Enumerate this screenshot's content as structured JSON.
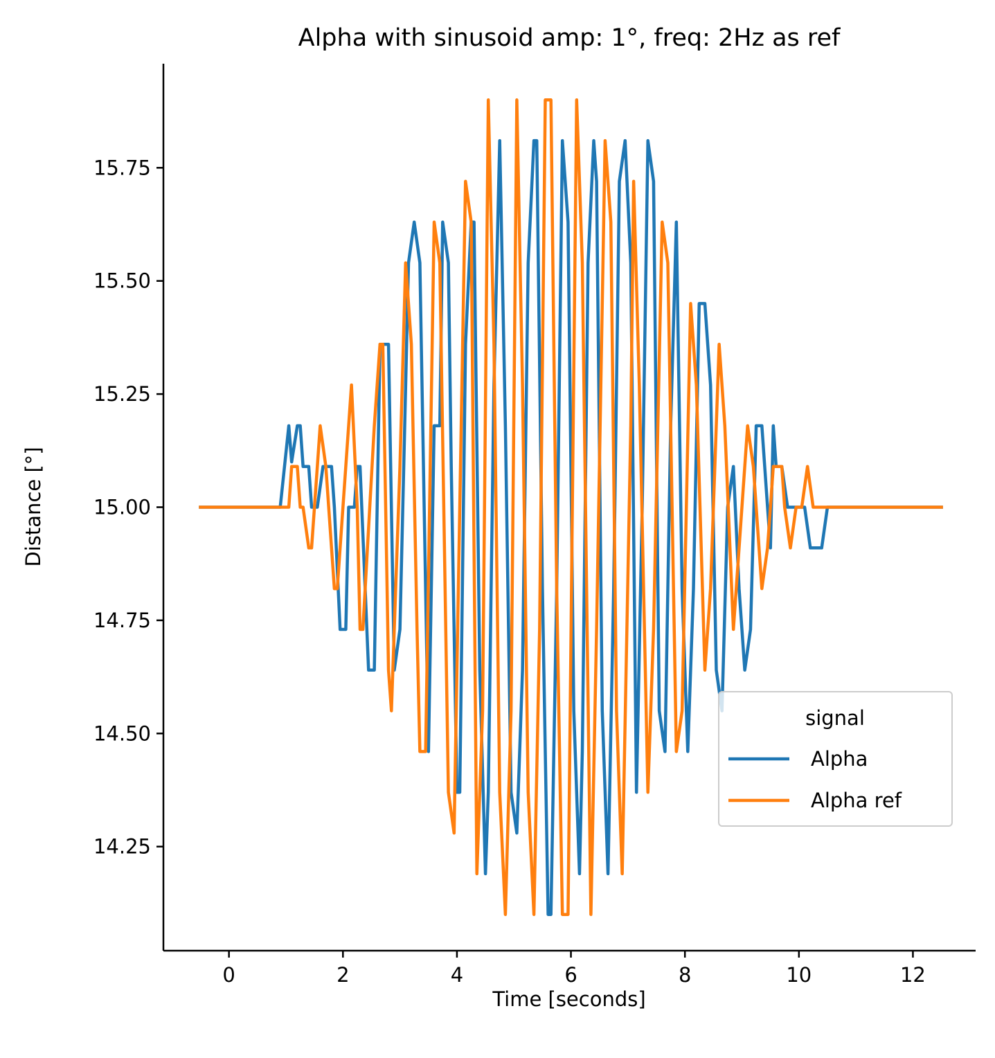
{
  "chart_data": {
    "type": "line",
    "title": "Alpha with sinusoid amp: 1°, freq: 2Hz as ref",
    "xlabel": "Time [seconds]",
    "ylabel": "Distance [°]",
    "xlim": [
      -1.15,
      13.1
    ],
    "ylim": [
      14.02,
      15.98
    ],
    "xticks": [
      0,
      2,
      4,
      6,
      8,
      10,
      12
    ],
    "xtick_labels": [
      "0",
      "2",
      "4",
      "6",
      "8",
      "10",
      "12"
    ],
    "yticks": [
      14.25,
      14.5,
      14.75,
      15.0,
      15.25,
      15.5,
      15.75
    ],
    "ytick_labels": [
      "14.25",
      "14.50",
      "14.75",
      "15.00",
      "15.25",
      "15.50",
      "15.75"
    ],
    "grid": false,
    "legend": {
      "title": "signal",
      "position": "center-right"
    },
    "series": [
      {
        "name": "Alpha",
        "color": "#1f77b4",
        "points": [
          [
            -0.5,
            15.0
          ],
          [
            0.9,
            15.0
          ],
          [
            1.05,
            15.18
          ],
          [
            1.1,
            15.1
          ],
          [
            1.2,
            15.18
          ],
          [
            1.25,
            15.18
          ],
          [
            1.3,
            15.09
          ],
          [
            1.4,
            15.09
          ],
          [
            1.45,
            15.0
          ],
          [
            1.55,
            15.0
          ],
          [
            1.65,
            15.09
          ],
          [
            1.8,
            15.09
          ],
          [
            1.85,
            15.0
          ],
          [
            1.95,
            14.73
          ],
          [
            2.05,
            14.73
          ],
          [
            2.1,
            15.0
          ],
          [
            2.2,
            15.0
          ],
          [
            2.25,
            15.09
          ],
          [
            2.3,
            15.09
          ],
          [
            2.45,
            14.64
          ],
          [
            2.55,
            14.64
          ],
          [
            2.65,
            15.36
          ],
          [
            2.8,
            15.36
          ],
          [
            2.9,
            14.64
          ],
          [
            3.0,
            14.73
          ],
          [
            3.15,
            15.54
          ],
          [
            3.25,
            15.63
          ],
          [
            3.35,
            15.54
          ],
          [
            3.5,
            14.46
          ],
          [
            3.6,
            15.18
          ],
          [
            3.7,
            15.18
          ],
          [
            3.75,
            15.63
          ],
          [
            3.85,
            15.54
          ],
          [
            3.9,
            15.09
          ],
          [
            4.0,
            14.37
          ],
          [
            4.05,
            14.37
          ],
          [
            4.15,
            15.36
          ],
          [
            4.25,
            15.63
          ],
          [
            4.3,
            15.63
          ],
          [
            4.4,
            14.64
          ],
          [
            4.5,
            14.19
          ],
          [
            4.55,
            14.37
          ],
          [
            4.65,
            15.27
          ],
          [
            4.75,
            15.81
          ],
          [
            4.85,
            15.18
          ],
          [
            4.95,
            14.37
          ],
          [
            5.05,
            14.28
          ],
          [
            5.15,
            14.64
          ],
          [
            5.25,
            15.54
          ],
          [
            5.35,
            15.81
          ],
          [
            5.4,
            15.81
          ],
          [
            5.5,
            14.82
          ],
          [
            5.6,
            14.1
          ],
          [
            5.65,
            14.1
          ],
          [
            5.75,
            14.82
          ],
          [
            5.85,
            15.81
          ],
          [
            5.95,
            15.63
          ],
          [
            6.05,
            14.55
          ],
          [
            6.15,
            14.19
          ],
          [
            6.2,
            14.46
          ],
          [
            6.3,
            15.54
          ],
          [
            6.4,
            15.81
          ],
          [
            6.45,
            15.72
          ],
          [
            6.55,
            14.55
          ],
          [
            6.65,
            14.19
          ],
          [
            6.75,
            14.82
          ],
          [
            6.85,
            15.72
          ],
          [
            6.95,
            15.81
          ],
          [
            7.05,
            15.54
          ],
          [
            7.15,
            14.37
          ],
          [
            7.25,
            15.0
          ],
          [
            7.35,
            15.81
          ],
          [
            7.45,
            15.72
          ],
          [
            7.55,
            14.55
          ],
          [
            7.65,
            14.46
          ],
          [
            7.75,
            15.18
          ],
          [
            7.85,
            15.63
          ],
          [
            7.95,
            14.82
          ],
          [
            8.05,
            14.46
          ],
          [
            8.15,
            14.82
          ],
          [
            8.25,
            15.45
          ],
          [
            8.35,
            15.45
          ],
          [
            8.45,
            15.27
          ],
          [
            8.55,
            14.64
          ],
          [
            8.65,
            14.55
          ],
          [
            8.75,
            15.0
          ],
          [
            8.85,
            15.09
          ],
          [
            8.95,
            14.82
          ],
          [
            9.05,
            14.64
          ],
          [
            9.15,
            14.73
          ],
          [
            9.25,
            15.18
          ],
          [
            9.35,
            15.18
          ],
          [
            9.45,
            15.0
          ],
          [
            9.5,
            14.91
          ],
          [
            9.55,
            15.18
          ],
          [
            9.6,
            15.09
          ],
          [
            9.7,
            15.09
          ],
          [
            9.8,
            15.0
          ],
          [
            10.1,
            15.0
          ],
          [
            10.2,
            14.91
          ],
          [
            10.4,
            14.91
          ],
          [
            10.5,
            15.0
          ],
          [
            12.5,
            15.0
          ]
        ]
      },
      {
        "name": "Alpha ref",
        "color": "#ff7f0e",
        "points": [
          [
            -0.5,
            15.0
          ],
          [
            1.05,
            15.0
          ],
          [
            1.1,
            15.09
          ],
          [
            1.2,
            15.09
          ],
          [
            1.25,
            15.0
          ],
          [
            1.3,
            15.0
          ],
          [
            1.4,
            14.91
          ],
          [
            1.45,
            14.91
          ],
          [
            1.55,
            15.09
          ],
          [
            1.6,
            15.18
          ],
          [
            1.7,
            15.09
          ],
          [
            1.85,
            14.82
          ],
          [
            1.9,
            14.82
          ],
          [
            2.05,
            15.09
          ],
          [
            2.15,
            15.27
          ],
          [
            2.25,
            15.0
          ],
          [
            2.3,
            14.73
          ],
          [
            2.35,
            14.73
          ],
          [
            2.55,
            15.18
          ],
          [
            2.65,
            15.36
          ],
          [
            2.7,
            15.36
          ],
          [
            2.8,
            14.64
          ],
          [
            2.85,
            14.55
          ],
          [
            3.0,
            15.09
          ],
          [
            3.1,
            15.54
          ],
          [
            3.2,
            15.36
          ],
          [
            3.3,
            14.73
          ],
          [
            3.35,
            14.46
          ],
          [
            3.45,
            14.46
          ],
          [
            3.6,
            15.63
          ],
          [
            3.7,
            15.54
          ],
          [
            3.85,
            14.37
          ],
          [
            3.95,
            14.28
          ],
          [
            4.05,
            15.0
          ],
          [
            4.15,
            15.72
          ],
          [
            4.25,
            15.63
          ],
          [
            4.35,
            14.19
          ],
          [
            4.45,
            14.55
          ],
          [
            4.55,
            15.9
          ],
          [
            4.65,
            15.36
          ],
          [
            4.75,
            14.37
          ],
          [
            4.85,
            14.1
          ],
          [
            4.95,
            14.55
          ],
          [
            5.05,
            15.9
          ],
          [
            5.15,
            15.27
          ],
          [
            5.25,
            14.37
          ],
          [
            5.35,
            14.1
          ],
          [
            5.45,
            14.73
          ],
          [
            5.55,
            15.9
          ],
          [
            5.65,
            15.9
          ],
          [
            5.75,
            14.82
          ],
          [
            5.85,
            14.1
          ],
          [
            5.95,
            14.1
          ],
          [
            6.1,
            15.9
          ],
          [
            6.2,
            15.54
          ],
          [
            6.35,
            14.1
          ],
          [
            6.45,
            14.73
          ],
          [
            6.6,
            15.81
          ],
          [
            6.7,
            15.63
          ],
          [
            6.8,
            14.55
          ],
          [
            6.9,
            14.19
          ],
          [
            7.05,
            15.18
          ],
          [
            7.1,
            15.72
          ],
          [
            7.2,
            15.27
          ],
          [
            7.35,
            14.37
          ],
          [
            7.45,
            14.73
          ],
          [
            7.6,
            15.63
          ],
          [
            7.7,
            15.54
          ],
          [
            7.85,
            14.46
          ],
          [
            7.95,
            14.55
          ],
          [
            8.1,
            15.45
          ],
          [
            8.2,
            15.27
          ],
          [
            8.35,
            14.64
          ],
          [
            8.45,
            14.82
          ],
          [
            8.6,
            15.36
          ],
          [
            8.7,
            15.18
          ],
          [
            8.85,
            14.73
          ],
          [
            9.0,
            15.0
          ],
          [
            9.1,
            15.18
          ],
          [
            9.2,
            15.09
          ],
          [
            9.35,
            14.82
          ],
          [
            9.45,
            14.91
          ],
          [
            9.55,
            15.09
          ],
          [
            9.7,
            15.09
          ],
          [
            9.75,
            15.0
          ],
          [
            9.85,
            14.91
          ],
          [
            9.95,
            15.0
          ],
          [
            10.05,
            15.0
          ],
          [
            10.15,
            15.09
          ],
          [
            10.25,
            15.0
          ],
          [
            12.5,
            15.0
          ]
        ]
      }
    ]
  }
}
